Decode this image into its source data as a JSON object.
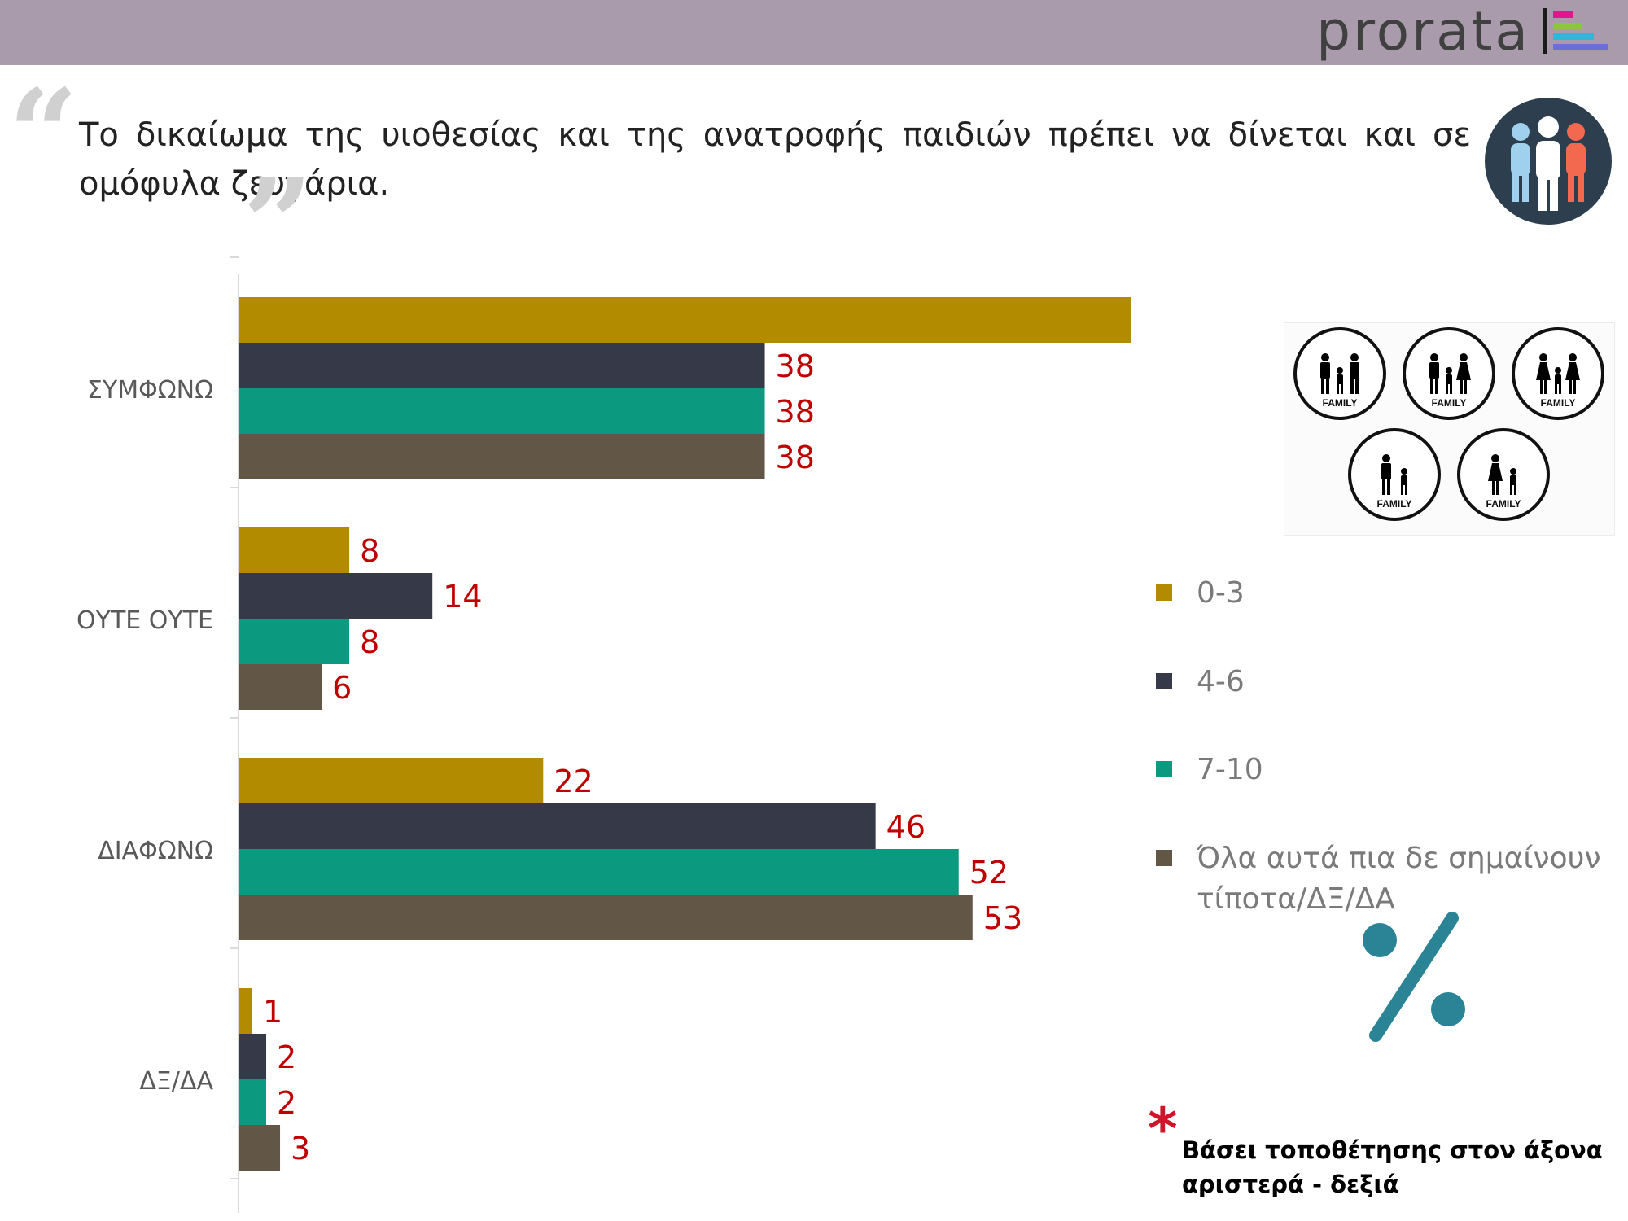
{
  "header": {
    "logo_text": "prorata"
  },
  "question": {
    "text": "Το δικαίωμα της υιοθεσίας και της ανατροφής παιδιών πρέπει να δίνεται και σε ομόφυλα ζευγάρια.",
    "open_quote": "“",
    "close_quote": "”"
  },
  "family_icons": {
    "label": "FAMILY",
    "icons": [
      "two-men-child",
      "man-woman-child",
      "two-women-child",
      "man-child",
      "woman-child"
    ]
  },
  "icons": {
    "people": "group-of-people-icon",
    "percent": "percent-icon",
    "footnote_marker": "asterisk-icon"
  },
  "colors": {
    "series": [
      "#b38b00",
      "#363a48",
      "#0b9a80",
      "#625747"
    ],
    "value_label": "#c00000",
    "category_label": "#595959",
    "legend_text": "#7a7a7a",
    "topbar": "#a99bab",
    "percent": "#2a8496",
    "asterisk": "#d0142c"
  },
  "chart_data": {
    "type": "bar",
    "orientation": "horizontal",
    "categories": [
      "ΣΥΜΦΩΝΩ",
      "ΟΥΤΕ ΟΥΤΕ",
      "ΔΙΑΦΩΝΩ",
      "ΔΞ/ΔΑ"
    ],
    "series": [
      {
        "name": "0-3",
        "values": [
          69,
          8,
          22,
          1
        ]
      },
      {
        "name": "4-6",
        "values": [
          38,
          14,
          46,
          2
        ]
      },
      {
        "name": "7-10",
        "values": [
          38,
          8,
          52,
          2
        ]
      },
      {
        "name": "Όλα αυτά πια δε σημαίνουν τίποτα/ΔΞ/ΔΑ",
        "values": [
          38,
          6,
          53,
          3
        ]
      }
    ],
    "unit": "%",
    "xlim": [
      0,
      69
    ],
    "grid": false,
    "data_labels": true,
    "legend_position": "right"
  },
  "footnote": {
    "marker": "*",
    "text": "Βάσει τοποθέτησης στον άξονα αριστερά - δεξιά"
  }
}
